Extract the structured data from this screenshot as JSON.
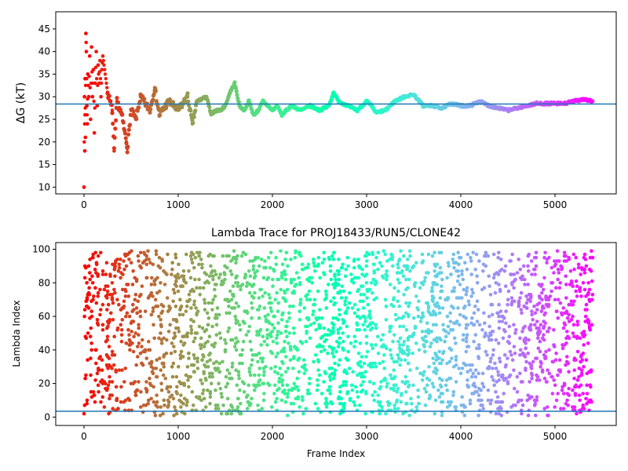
{
  "chart_data": [
    {
      "type": "scatter",
      "title": "",
      "xlabel": "",
      "ylabel": "ΔG (kT)",
      "xlim": [
        -300,
        5650
      ],
      "ylim": [
        8.5,
        48.8
      ],
      "xticks": [
        0,
        1000,
        2000,
        3000,
        4000,
        5000
      ],
      "yticks": [
        10,
        15,
        20,
        25,
        30,
        35,
        40,
        45
      ],
      "reference_line": 28.4,
      "colormap": "rainbow (reversed: red at start → purple at end)",
      "grid": false,
      "series": [
        {
          "points_sampled": [
            [
              0,
              10
            ],
            [
              5,
              30
            ],
            [
              8,
              18
            ],
            [
              12,
              34
            ],
            [
              15,
              21
            ],
            [
              20,
              44
            ],
            [
              25,
              40
            ],
            [
              30,
              28
            ],
            [
              35,
              24
            ],
            [
              40,
              35
            ],
            [
              50,
              30
            ],
            [
              60,
              39
            ],
            [
              70,
              25
            ],
            [
              80,
              41
            ],
            [
              90,
              30
            ],
            [
              100,
              36
            ],
            [
              110,
              22
            ],
            [
              120,
              33
            ],
            [
              130,
              40
            ],
            [
              140,
              28
            ],
            [
              150,
              37
            ],
            [
              160,
              33
            ],
            [
              170,
              38
            ],
            [
              180,
              30
            ],
            [
              190,
              36
            ],
            [
              200,
              39
            ],
            [
              250,
              31
            ],
            [
              300,
              27
            ],
            [
              320,
              18
            ],
            [
              350,
              29
            ],
            [
              400,
              26
            ],
            [
              450,
              20
            ],
            [
              460,
              18.5
            ],
            [
              500,
              27
            ],
            [
              550,
              25
            ],
            [
              600,
              30
            ],
            [
              700,
              27
            ],
            [
              750,
              32
            ],
            [
              800,
              26
            ],
            [
              900,
              29
            ],
            [
              1000,
              27
            ],
            [
              1100,
              30
            ],
            [
              1150,
              24
            ],
            [
              1200,
              29
            ],
            [
              1300,
              30
            ],
            [
              1350,
              26
            ],
            [
              1400,
              27
            ],
            [
              1450,
              27
            ],
            [
              1500,
              28
            ],
            [
              1550,
              31
            ],
            [
              1600,
              33
            ],
            [
              1650,
              28
            ],
            [
              1700,
              27
            ],
            [
              1750,
              29
            ],
            [
              1800,
              26
            ],
            [
              1850,
              27
            ],
            [
              1900,
              29
            ],
            [
              2000,
              27
            ],
            [
              2050,
              28
            ],
            [
              2100,
              26
            ],
            [
              2200,
              28
            ],
            [
              2300,
              27
            ],
            [
              2400,
              28
            ],
            [
              2500,
              27
            ],
            [
              2600,
              28
            ],
            [
              2650,
              31
            ],
            [
              2700,
              29
            ],
            [
              2800,
              28
            ],
            [
              2900,
              27
            ],
            [
              3000,
              29
            ],
            [
              3050,
              28
            ],
            [
              3100,
              26.5
            ],
            [
              3200,
              27
            ],
            [
              3300,
              29
            ],
            [
              3400,
              30
            ],
            [
              3500,
              30.5
            ],
            [
              3600,
              28
            ],
            [
              3700,
              28
            ],
            [
              3800,
              27.5
            ],
            [
              3900,
              28.5
            ],
            [
              4000,
              28
            ],
            [
              4100,
              28
            ],
            [
              4200,
              29
            ],
            [
              4300,
              28
            ],
            [
              4400,
              27.5
            ],
            [
              4500,
              27
            ],
            [
              4600,
              27.5
            ],
            [
              4700,
              28
            ],
            [
              4800,
              28.5
            ],
            [
              4900,
              28.5
            ],
            [
              5000,
              28.5
            ],
            [
              5100,
              28.5
            ],
            [
              5200,
              29
            ],
            [
              5300,
              29.5
            ],
            [
              5400,
              29
            ]
          ]
        }
      ]
    },
    {
      "type": "scatter",
      "title": "Lambda Trace for PROJ18433/RUN5/CLONE42",
      "xlabel": "Frame Index",
      "ylabel": "Lambda Index",
      "xlim": [
        -300,
        5650
      ],
      "ylim": [
        -5,
        104
      ],
      "xticks": [
        0,
        1000,
        2000,
        3000,
        4000,
        5000
      ],
      "yticks": [
        0,
        20,
        40,
        60,
        80,
        100
      ],
      "reference_line": 3.5,
      "colormap": "rainbow (reversed: red at start → purple at end)",
      "grid": false,
      "series": [
        {
          "description": "",
          "points_sampled": [
            [
              0,
              2
            ],
            [
              5,
              60
            ],
            [
              10,
              90
            ],
            [
              15,
              48
            ],
            [
              20,
              25
            ],
            [
              30,
              80
            ],
            [
              50,
              65
            ],
            [
              70,
              35
            ],
            [
              90,
              95
            ],
            [
              100,
              15
            ],
            [
              150,
              55
            ],
            [
              200,
              85
            ],
            [
              250,
              30
            ],
            [
              300,
              70
            ],
            [
              350,
              10
            ],
            [
              400,
              45
            ],
            [
              450,
              90
            ],
            [
              500,
              20
            ],
            [
              600,
              60
            ],
            [
              700,
              40
            ],
            [
              800,
              95
            ],
            [
              900,
              15
            ],
            [
              1000,
              75
            ],
            [
              1100,
              30
            ],
            [
              1200,
              50
            ],
            [
              1300,
              85
            ],
            [
              1400,
              5
            ],
            [
              1500,
              40
            ],
            [
              1600,
              65
            ],
            [
              1700,
              20
            ],
            [
              1800,
              90
            ],
            [
              1900,
              35
            ],
            [
              2000,
              55
            ],
            [
              2100,
              10
            ],
            [
              2200,
              80
            ],
            [
              2300,
              45
            ],
            [
              2400,
              70
            ],
            [
              2500,
              25
            ],
            [
              2600,
              95
            ],
            [
              2700,
              50
            ],
            [
              2800,
              15
            ],
            [
              2900,
              60
            ],
            [
              3000,
              85
            ],
            [
              3100,
              30
            ],
            [
              3200,
              70
            ],
            [
              3300,
              5
            ],
            [
              3400,
              45
            ],
            [
              3500,
              90
            ],
            [
              3600,
              60
            ],
            [
              3700,
              20
            ],
            [
              3800,
              75
            ],
            [
              3900,
              40
            ],
            [
              4000,
              95
            ],
            [
              4100,
              10
            ],
            [
              4200,
              55
            ],
            [
              4300,
              30
            ],
            [
              4400,
              85
            ],
            [
              4500,
              45
            ],
            [
              4600,
              15
            ],
            [
              4700,
              65
            ],
            [
              4800,
              90
            ],
            [
              4900,
              35
            ],
            [
              5000,
              70
            ],
            [
              5100,
              20
            ],
            [
              5200,
              55
            ],
            [
              5300,
              80
            ],
            [
              5400,
              95
            ]
          ]
        }
      ]
    }
  ],
  "style": {
    "reference_line_color": "#1f77b4",
    "axis_color": "#000000",
    "background": "#ffffff"
  }
}
